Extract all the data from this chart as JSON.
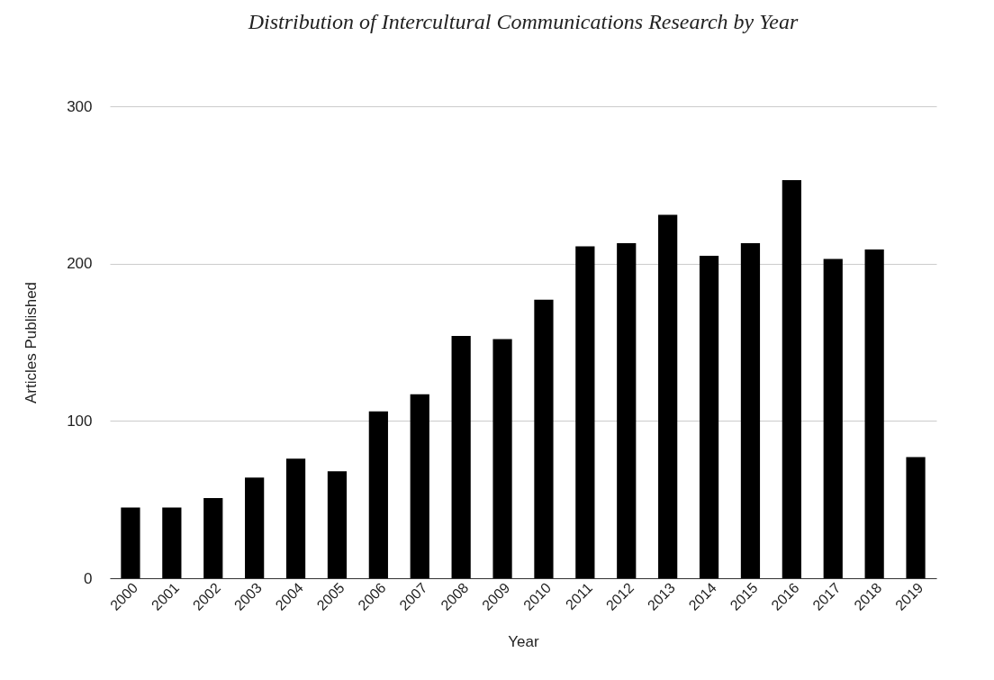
{
  "chart_data": {
    "type": "bar",
    "title": "Distribution of Intercultural Communications Research by Year",
    "xlabel": "Year",
    "ylabel": "Articles Published",
    "categories": [
      "2000",
      "2001",
      "2002",
      "2003",
      "2004",
      "2005",
      "2006",
      "2007",
      "2008",
      "2009",
      "2010",
      "2011",
      "2012",
      "2013",
      "2014",
      "2015",
      "2016",
      "2017",
      "2018",
      "2019"
    ],
    "values": [
      45,
      45,
      51,
      64,
      76,
      68,
      106,
      117,
      154,
      152,
      177,
      211,
      213,
      231,
      205,
      213,
      253,
      203,
      209,
      77
    ],
    "color": "#000000",
    "ylim": [
      0,
      300
    ],
    "yticks": [
      0,
      100,
      200,
      300
    ],
    "grid": "y"
  }
}
